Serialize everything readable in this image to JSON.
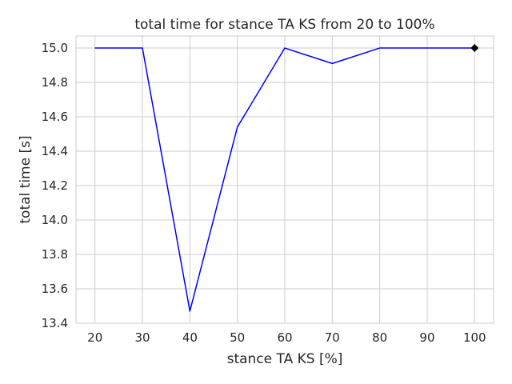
{
  "chart_data": {
    "type": "line",
    "title": "total time for stance TA KS from 20 to 100%",
    "xlabel": "stance TA KS [%]",
    "ylabel": "total time [s]",
    "x": [
      20,
      30,
      40,
      50,
      60,
      70,
      80,
      90,
      100
    ],
    "xlim": [
      16,
      104
    ],
    "ylim": [
      13.4,
      15.07
    ],
    "xticks": [
      20,
      30,
      40,
      50,
      60,
      70,
      80,
      90,
      100
    ],
    "yticks": [
      13.4,
      13.6,
      13.8,
      14.0,
      14.2,
      14.4,
      14.6,
      14.8,
      15.0
    ],
    "grid": true,
    "series": [
      {
        "values": [
          15.0,
          15.0,
          13.47,
          14.54,
          15.0,
          14.91,
          15.0,
          15.0,
          15.0
        ],
        "color": "#0000ff"
      }
    ],
    "highlight_point": {
      "x": 100,
      "y": 15.0,
      "marker": "diamond",
      "color": "#000000"
    }
  }
}
